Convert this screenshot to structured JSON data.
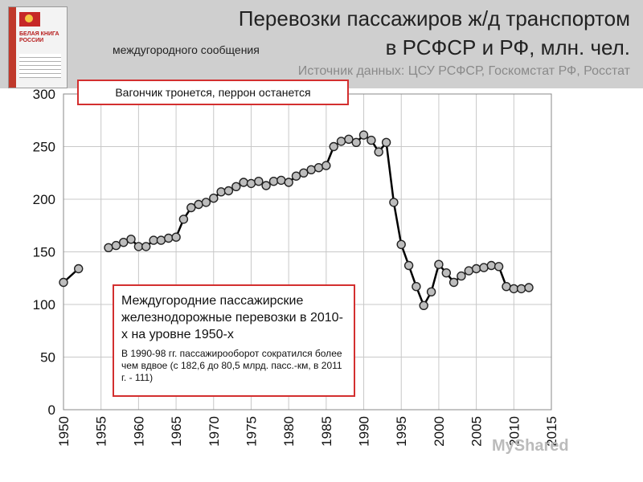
{
  "title": {
    "line1": "Перевозки пассажиров ж/д транспортом",
    "line2_small": "междугородного сообщения",
    "line2_large": "в РСФСР и РФ, млн. чел.",
    "source": "Источник данных: ЦСУ РСФСР, Госкомстат РФ, Росстат"
  },
  "book_cover": {
    "title": "БЕЛАЯ КНИГА РОССИИ"
  },
  "callouts": {
    "top": "Вагончик тронется, перрон останется",
    "main_title": "Междугородние пассажирские железнодорожные перевозки в 2010-х на уровне 1950-х",
    "main_note": "В 1990-98 гг. пассажирооборот сократился более чем вдвое (с 182,6 до 80,5 млрд. пасс.-км, в 2011 г. - 111)"
  },
  "watermark": "MyShared",
  "colors": {
    "header_bg": "#cfcfcf",
    "line": "#000000",
    "marker_fill": "#bdbdbd",
    "callout_border": "#d32f2f"
  },
  "chart_data": {
    "type": "line",
    "title": "Перевозки пассажиров ж/д транспортом междугородного сообщения в РСФСР и РФ, млн. чел.",
    "xlabel": "",
    "ylabel": "",
    "xlim": [
      1950,
      2015
    ],
    "ylim": [
      0,
      300
    ],
    "x_ticks": [
      1950,
      1955,
      1960,
      1965,
      1970,
      1975,
      1980,
      1985,
      1990,
      1995,
      2000,
      2005,
      2010,
      2015
    ],
    "y_ticks": [
      0,
      50,
      100,
      150,
      200,
      250,
      300
    ],
    "grid": true,
    "series": [
      {
        "x": [
          1950,
          1952
        ],
        "y": [
          121,
          134
        ]
      },
      {
        "x": [
          1956,
          1957,
          1958,
          1959,
          1960,
          1961,
          1962,
          1963,
          1964,
          1965,
          1966,
          1967,
          1968,
          1969,
          1970,
          1971,
          1972,
          1973,
          1974,
          1975,
          1976,
          1977,
          1978,
          1979,
          1980,
          1981,
          1982,
          1983,
          1984,
          1985,
          1986,
          1987,
          1988,
          1989,
          1990,
          1991,
          1992,
          1993,
          1994,
          1995,
          1996,
          1997,
          1998,
          1999,
          2000,
          2001,
          2002,
          2003,
          2004,
          2005,
          2006,
          2007,
          2008,
          2009,
          2010,
          2011,
          2012
        ],
        "y": [
          154,
          156,
          159,
          162,
          155,
          155,
          161,
          161,
          163,
          164,
          181,
          192,
          195,
          197,
          201,
          207,
          208,
          212,
          216,
          215,
          217,
          213,
          217,
          218,
          216,
          222,
          225,
          228,
          230,
          232,
          250,
          255,
          257,
          254,
          261,
          256,
          245,
          254,
          197,
          157,
          137,
          117,
          99,
          112,
          138,
          130,
          121,
          127,
          132,
          134,
          135,
          137,
          136,
          117,
          115,
          115,
          116
        ]
      }
    ]
  }
}
